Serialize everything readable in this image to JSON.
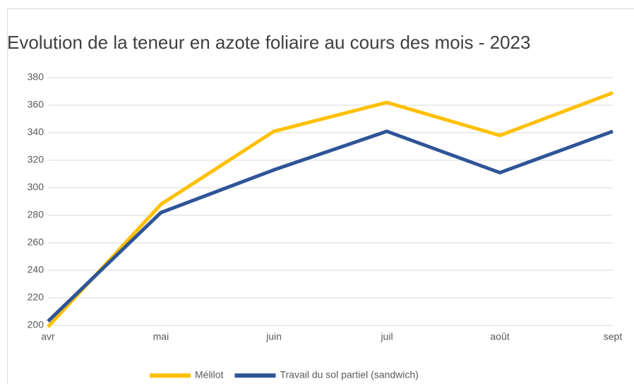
{
  "chart_data": {
    "type": "line",
    "title": "Evolution de la teneur en azote foliaire au cours des mois - 2023",
    "categories": [
      "avr",
      "mai",
      "juin",
      "juil",
      "août",
      "sept"
    ],
    "series": [
      {
        "name": "Mélilot",
        "color": "#ffc000",
        "values": [
          199,
          288,
          341,
          362,
          338,
          369
        ]
      },
      {
        "name": "Travail du sol partiel (sandwich)",
        "color": "#2f5597",
        "values": [
          203,
          282,
          313,
          341,
          311,
          341
        ]
      }
    ],
    "ylim": [
      200,
      380
    ],
    "yticks": [
      200,
      220,
      240,
      260,
      280,
      300,
      320,
      340,
      360,
      380
    ],
    "grid": true,
    "legend": "bottom"
  }
}
